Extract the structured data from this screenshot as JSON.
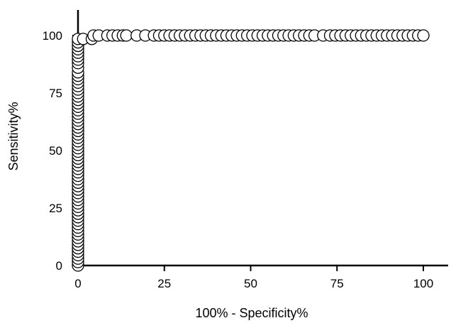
{
  "chart_data": {
    "type": "scatter",
    "title": "",
    "xlabel": "100% - Specificity%",
    "ylabel": "Sensitivity%",
    "xlim": [
      0,
      107
    ],
    "ylim": [
      0,
      110
    ],
    "x_ticks": [
      0,
      25,
      50,
      75,
      100
    ],
    "y_ticks": [
      0,
      25,
      50,
      75,
      100
    ],
    "x_tick_labels": [
      "0",
      "25",
      "50",
      "75",
      "100"
    ],
    "y_tick_labels": [
      "0",
      "25",
      "50",
      "75",
      "100"
    ],
    "grid": false,
    "legend": "none",
    "marker": "open-circle",
    "marker_fill": "#ffffff",
    "marker_stroke": "#000000",
    "axis_color": "#000000",
    "series": [
      {
        "points": [
          [
            0,
            0
          ],
          [
            0,
            1.5
          ],
          [
            0,
            3
          ],
          [
            0,
            4.5
          ],
          [
            0,
            6
          ],
          [
            0,
            7.5
          ],
          [
            0,
            9
          ],
          [
            0,
            10.5
          ],
          [
            0,
            12
          ],
          [
            0,
            13.5
          ],
          [
            0,
            15
          ],
          [
            0,
            16.5
          ],
          [
            0,
            18
          ],
          [
            0,
            19.5
          ],
          [
            0,
            21
          ],
          [
            0,
            22.5
          ],
          [
            0,
            24
          ],
          [
            0,
            25.5
          ],
          [
            0,
            27
          ],
          [
            0,
            28.5
          ],
          [
            0,
            30
          ],
          [
            0,
            31.5
          ],
          [
            0,
            33
          ],
          [
            0,
            34.5
          ],
          [
            0,
            36
          ],
          [
            0,
            37.5
          ],
          [
            0,
            39
          ],
          [
            0,
            40.5
          ],
          [
            0,
            42
          ],
          [
            0,
            43.5
          ],
          [
            0,
            45
          ],
          [
            0,
            46.5
          ],
          [
            0,
            48
          ],
          [
            0,
            49.5
          ],
          [
            0,
            51
          ],
          [
            0,
            52.5
          ],
          [
            0,
            54
          ],
          [
            0,
            55.5
          ],
          [
            0,
            57
          ],
          [
            0,
            58.5
          ],
          [
            0,
            60
          ],
          [
            0,
            61.5
          ],
          [
            0,
            63
          ],
          [
            0,
            64.5
          ],
          [
            0,
            66
          ],
          [
            0,
            67.5
          ],
          [
            0,
            69
          ],
          [
            0,
            70.5
          ],
          [
            0,
            72
          ],
          [
            0,
            73.5
          ],
          [
            0,
            75
          ],
          [
            0,
            76.5
          ],
          [
            0,
            78
          ],
          [
            0,
            79.5
          ],
          [
            0,
            81
          ],
          [
            0,
            82.5
          ],
          [
            0,
            84
          ],
          [
            0,
            86
          ],
          [
            0,
            88
          ],
          [
            0,
            89.5
          ],
          [
            0,
            91
          ],
          [
            0,
            92.5
          ],
          [
            0,
            94
          ],
          [
            0,
            95.5
          ],
          [
            0,
            97
          ],
          [
            0,
            98.5
          ],
          [
            1.5,
            98.5
          ],
          [
            4,
            98.5
          ],
          [
            4.5,
            100
          ],
          [
            6,
            100
          ],
          [
            8.5,
            100
          ],
          [
            10,
            100
          ],
          [
            11.5,
            100
          ],
          [
            13,
            100
          ],
          [
            14,
            100
          ],
          [
            17,
            100
          ],
          [
            19.5,
            100
          ],
          [
            22,
            100
          ],
          [
            23.5,
            100
          ],
          [
            25,
            100
          ],
          [
            26.5,
            100
          ],
          [
            28,
            100
          ],
          [
            29.5,
            100
          ],
          [
            31,
            100
          ],
          [
            32.5,
            100
          ],
          [
            34,
            100
          ],
          [
            35.5,
            100
          ],
          [
            37,
            100
          ],
          [
            38.5,
            100
          ],
          [
            40,
            100
          ],
          [
            41.5,
            100
          ],
          [
            43,
            100
          ],
          [
            44.5,
            100
          ],
          [
            46,
            100
          ],
          [
            47.5,
            100
          ],
          [
            49,
            100
          ],
          [
            50.5,
            100
          ],
          [
            52,
            100
          ],
          [
            53.5,
            100
          ],
          [
            55,
            100
          ],
          [
            56.5,
            100
          ],
          [
            58,
            100
          ],
          [
            59.5,
            100
          ],
          [
            61,
            100
          ],
          [
            62.5,
            100
          ],
          [
            64,
            100
          ],
          [
            65.5,
            100
          ],
          [
            67,
            100
          ],
          [
            68.5,
            100
          ],
          [
            71,
            100
          ],
          [
            73,
            100
          ],
          [
            74.5,
            100
          ],
          [
            76,
            100
          ],
          [
            77.5,
            100
          ],
          [
            79,
            100
          ],
          [
            80.5,
            100
          ],
          [
            82,
            100
          ],
          [
            83.5,
            100
          ],
          [
            85,
            100
          ],
          [
            86.5,
            100
          ],
          [
            88,
            100
          ],
          [
            89.5,
            100
          ],
          [
            91,
            100
          ],
          [
            92.5,
            100
          ],
          [
            94,
            100
          ],
          [
            95.5,
            100
          ],
          [
            97,
            100
          ],
          [
            98.5,
            100
          ],
          [
            100,
            100
          ]
        ]
      }
    ]
  }
}
